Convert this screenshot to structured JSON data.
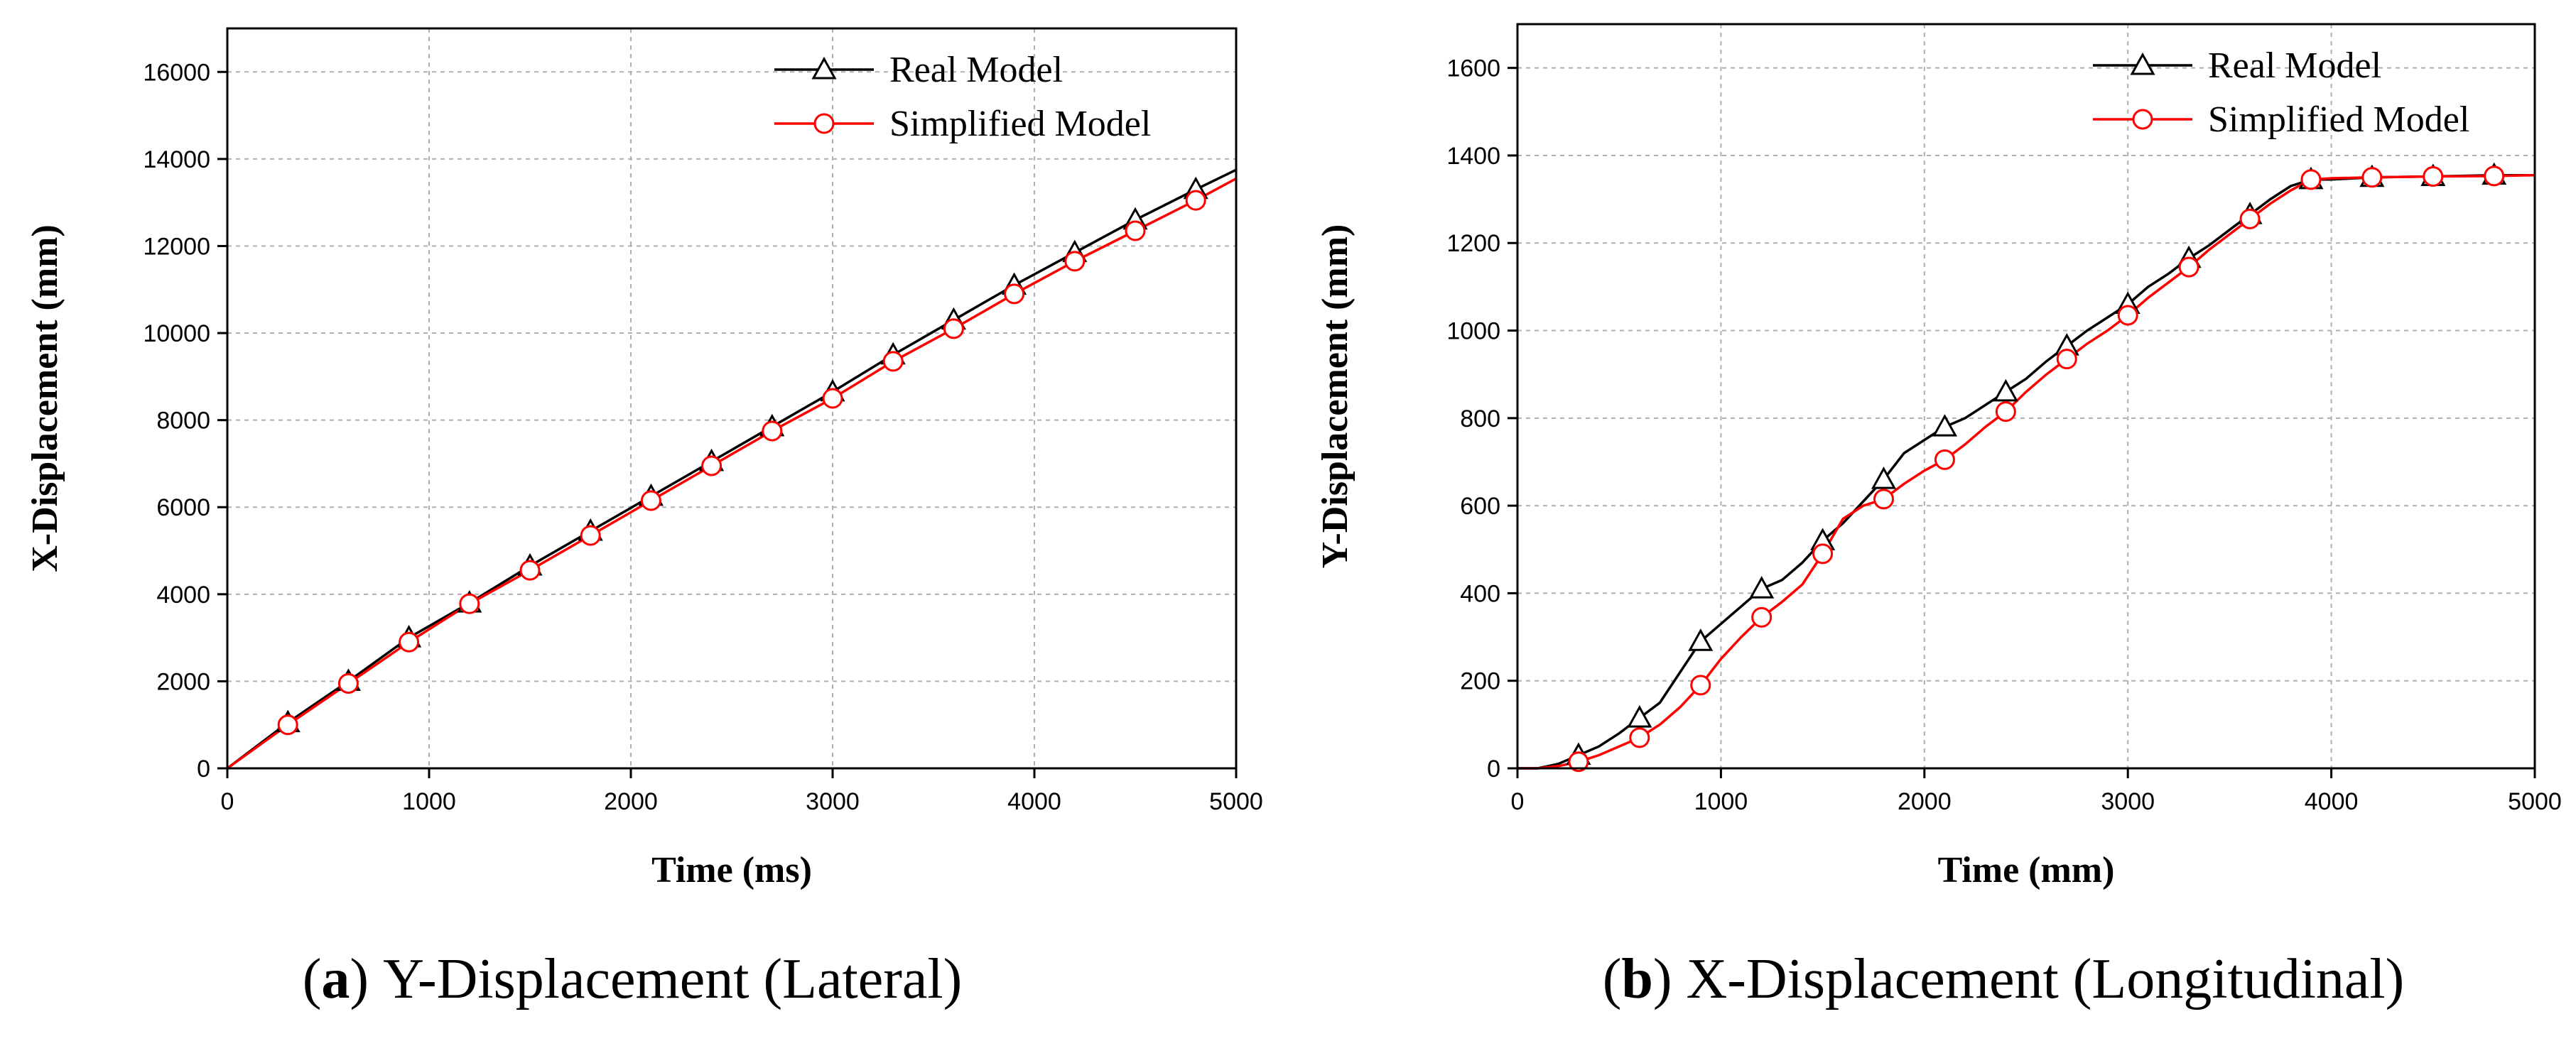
{
  "chart_data": [
    {
      "type": "line",
      "panel": "a",
      "caption_letter": "a",
      "caption_text": "Y-Displacement (Lateral)",
      "caption_open": "(",
      "caption_close": ")",
      "xlabel": "Time (ms)",
      "ylabel": "X-Displacement (mm)",
      "xlim": [
        0,
        5000
      ],
      "ylim": [
        0,
        17000
      ],
      "xticks": [
        0,
        1000,
        2000,
        3000,
        4000,
        5000
      ],
      "yticks": [
        0,
        2000,
        4000,
        6000,
        8000,
        10000,
        12000,
        14000,
        16000
      ],
      "grid": true,
      "legend_position": "top-right",
      "series": [
        {
          "name": "Real Model",
          "color": "#000000",
          "marker": "triangle",
          "x": [
            0,
            300,
            600,
            900,
            1200,
            1500,
            1800,
            2100,
            2400,
            2700,
            3000,
            3300,
            3600,
            3900,
            4200,
            4500,
            4800,
            5000
          ],
          "y": [
            0,
            1050,
            2000,
            3000,
            3800,
            4650,
            5450,
            6250,
            7050,
            7850,
            8650,
            9500,
            10300,
            11100,
            11850,
            12600,
            13300,
            13750
          ],
          "markers_at": [
            300,
            600,
            900,
            1200,
            1500,
            1800,
            2100,
            2400,
            2700,
            3000,
            3300,
            3600,
            3900,
            4200,
            4500,
            4800
          ]
        },
        {
          "name": "Simplified Model",
          "color": "#ff0000",
          "marker": "circle",
          "x": [
            0,
            300,
            600,
            900,
            1200,
            1500,
            1800,
            2100,
            2400,
            2700,
            3000,
            3300,
            3600,
            3900,
            4200,
            4500,
            4800,
            5000
          ],
          "y": [
            0,
            1000,
            1950,
            2900,
            3780,
            4550,
            5350,
            6150,
            6950,
            7750,
            8500,
            9350,
            10100,
            10900,
            11650,
            12350,
            13050,
            13550
          ],
          "markers_at": [
            300,
            600,
            900,
            1200,
            1500,
            1800,
            2100,
            2400,
            2700,
            3000,
            3300,
            3600,
            3900,
            4200,
            4500,
            4800
          ]
        }
      ]
    },
    {
      "type": "line",
      "panel": "b",
      "caption_letter": "b",
      "caption_text": "X-Displacement (Longitudinal)",
      "caption_open": "(",
      "caption_close": ")",
      "xlabel": "Time (mm)",
      "ylabel": "Y-Displacement (mm)",
      "xlim": [
        0,
        5000
      ],
      "ylim": [
        0,
        1700
      ],
      "xticks": [
        0,
        1000,
        2000,
        3000,
        4000,
        5000
      ],
      "yticks": [
        0,
        200,
        400,
        600,
        800,
        1000,
        1200,
        1400,
        1600
      ],
      "grid": true,
      "legend_position": "top-right",
      "series": [
        {
          "name": "Real Model",
          "color": "#000000",
          "marker": "triangle",
          "x": [
            0,
            100,
            200,
            300,
            400,
            500,
            600,
            700,
            800,
            900,
            1000,
            1100,
            1200,
            1300,
            1400,
            1500,
            1600,
            1700,
            1800,
            1900,
            2000,
            2100,
            2200,
            2300,
            2400,
            2500,
            2600,
            2700,
            2800,
            2900,
            3000,
            3100,
            3200,
            3300,
            3400,
            3500,
            3600,
            3700,
            3800,
            3900,
            4000,
            4200,
            4500,
            4800,
            5000
          ],
          "y": [
            0,
            0,
            10,
            30,
            50,
            80,
            115,
            150,
            220,
            290,
            330,
            370,
            410,
            430,
            470,
            520,
            560,
            610,
            660,
            720,
            750,
            780,
            800,
            830,
            860,
            890,
            930,
            965,
            1000,
            1030,
            1060,
            1100,
            1130,
            1165,
            1195,
            1230,
            1265,
            1300,
            1330,
            1345,
            1345,
            1350,
            1352,
            1355,
            1355
          ],
          "markers_at": [
            300,
            600,
            900,
            1200,
            1500,
            1800,
            2100,
            2400,
            2700,
            3000,
            3300,
            3600,
            3900,
            4200,
            4500,
            4800
          ]
        },
        {
          "name": "Simplified Model",
          "color": "#ff0000",
          "marker": "circle",
          "x": [
            0,
            100,
            200,
            300,
            400,
            500,
            600,
            700,
            800,
            900,
            1000,
            1100,
            1200,
            1300,
            1400,
            1500,
            1600,
            1700,
            1800,
            1900,
            2000,
            2100,
            2200,
            2300,
            2400,
            2500,
            2600,
            2700,
            2800,
            2900,
            3000,
            3100,
            3200,
            3300,
            3400,
            3500,
            3600,
            3700,
            3800,
            3900,
            4000,
            4200,
            4500,
            4800,
            5000
          ],
          "y": [
            0,
            0,
            5,
            15,
            30,
            50,
            70,
            100,
            140,
            190,
            250,
            300,
            345,
            380,
            420,
            490,
            570,
            600,
            615,
            650,
            680,
            705,
            740,
            780,
            815,
            860,
            900,
            935,
            970,
            1000,
            1035,
            1075,
            1110,
            1145,
            1185,
            1220,
            1255,
            1290,
            1320,
            1345,
            1348,
            1350,
            1352,
            1353,
            1355
          ],
          "markers_at": [
            300,
            600,
            900,
            1200,
            1500,
            1800,
            2100,
            2400,
            2700,
            3000,
            3300,
            3600,
            3900,
            4200,
            4500,
            4800
          ]
        }
      ]
    }
  ]
}
